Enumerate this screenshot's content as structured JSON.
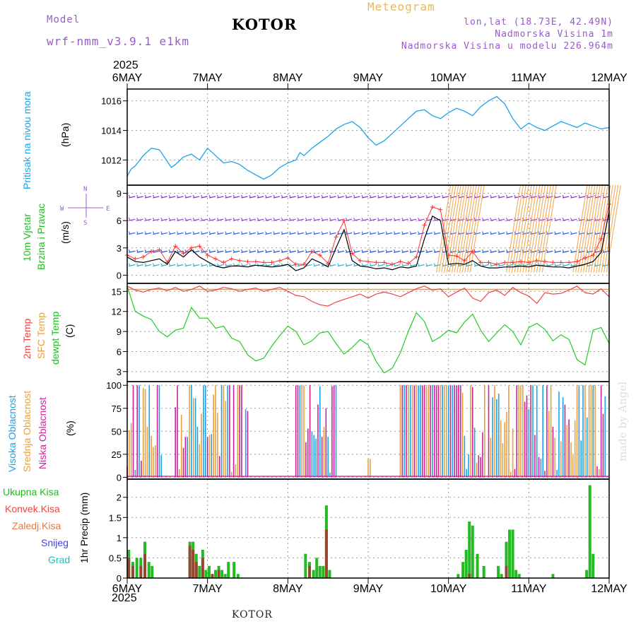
{
  "header": {
    "model_label": "Model",
    "model_name": "wrf-nmm_v3.9.1 e1km",
    "city": "KOTOR",
    "chart_title": "Meteogram",
    "lonlat": "lon,lat (18.73E, 42.49N)",
    "altitude": "Nadmorska Visina 1m",
    "model_altitude": "Nadmorska Visina u modelu 226.964m",
    "year_top": "2025",
    "year_bottom": "2025",
    "footer_city": "KOTOR",
    "watermark": "made by Angel"
  },
  "colors": {
    "pressure": "#1aa3e6",
    "wind_black": "#000000",
    "wind_red": "#ff3333",
    "temp2m": "#ee4444",
    "sfc": "#e8a040",
    "dewpt": "#22cc22",
    "high_cloud": "#1aa3e6",
    "mid_cloud": "#e8a040",
    "low_cloud": "#cc2299",
    "total_precip": "#22bb22",
    "conv_precip": "#aa3333",
    "grid": "#888888"
  },
  "panel_labels": {
    "pressure": [
      "Pritisak na nivou mora"
    ],
    "pressure_unit": "(hPa)",
    "wind": [
      "10m Vjetar",
      "Brzina i Pravac"
    ],
    "wind_unit": "(m/s)",
    "compass": {
      "n": "N",
      "s": "S",
      "e": "E",
      "w": "W"
    },
    "temp": [
      "2m Temp",
      "SFC Temp",
      "dewpt Temp"
    ],
    "temp_unit": "(C)",
    "cloud": [
      "Visoka Oblacnost",
      "Srednja Oblacnost",
      "Niska Oblacnost"
    ],
    "cloud_unit": "(%)",
    "precip_legend": [
      "Ukupna Kisa",
      "Konvek.Kisa",
      "Zaledj.Kisa",
      "Snijeg",
      "Grad"
    ],
    "precip_unit": "1hr Precip (mm)"
  },
  "chart_data": {
    "type": "line",
    "x_labels": [
      "6MAY",
      "7MAY",
      "8MAY",
      "9MAY",
      "10MAY",
      "11MAY",
      "12MAY"
    ],
    "panels": {
      "pressure": {
        "ylabel": "(hPa)",
        "yticks": [
          1012,
          1014,
          1016
        ],
        "ylim": [
          1010.3,
          1016.8
        ],
        "series": {
          "x": [
            0,
            0.05,
            0.1,
            0.2,
            0.3,
            0.4,
            0.5,
            0.55,
            0.6,
            0.7,
            0.8,
            0.9,
            1.0,
            1.1,
            1.2,
            1.3,
            1.4,
            1.5,
            1.6,
            1.7,
            1.8,
            1.9,
            2.0,
            2.1,
            2.15,
            2.2,
            2.3,
            2.4,
            2.5,
            2.6,
            2.7,
            2.8,
            2.9,
            3.0,
            3.1,
            3.2,
            3.3,
            3.4,
            3.5,
            3.6,
            3.7,
            3.8,
            3.9,
            4.0,
            4.1,
            4.2,
            4.3,
            4.4,
            4.5,
            4.6,
            4.7,
            4.8,
            4.9,
            5.0,
            5.1,
            5.2,
            5.3,
            5.4,
            5.5,
            5.6,
            5.7,
            5.8,
            5.9,
            6.0
          ],
          "values": [
            1010.9,
            1011.4,
            1011.6,
            1012.3,
            1012.8,
            1012.7,
            1011.9,
            1011.5,
            1011.7,
            1012.2,
            1012.4,
            1012.0,
            1012.8,
            1012.3,
            1011.8,
            1011.9,
            1011.7,
            1011.3,
            1011.0,
            1010.7,
            1011.0,
            1011.5,
            1011.8,
            1012.0,
            1012.5,
            1012.3,
            1012.8,
            1013.2,
            1013.6,
            1014.1,
            1014.4,
            1014.6,
            1014.2,
            1013.5,
            1013.0,
            1013.3,
            1013.8,
            1014.3,
            1014.8,
            1015.3,
            1015.4,
            1015.0,
            1014.8,
            1015.2,
            1015.5,
            1015.3,
            1015.0,
            1015.6,
            1016.0,
            1016.3,
            1015.8,
            1014.8,
            1014.1,
            1014.5,
            1014.2,
            1014.0,
            1014.3,
            1014.6,
            1014.4,
            1014.2,
            1014.5,
            1014.3,
            1014.1,
            1014.2
          ]
        }
      },
      "wind": {
        "ylabel": "(m/s)",
        "yticks": [
          0,
          3,
          6,
          9
        ],
        "ylim": [
          -0.9,
          9.9
        ],
        "speed": {
          "x": [
            0,
            0.1,
            0.2,
            0.3,
            0.4,
            0.5,
            0.6,
            0.7,
            0.8,
            0.9,
            1.0,
            1.1,
            1.2,
            1.3,
            1.4,
            1.5,
            1.6,
            1.7,
            1.8,
            1.9,
            2.0,
            2.1,
            2.2,
            2.3,
            2.4,
            2.5,
            2.6,
            2.7,
            2.8,
            2.9,
            3.0,
            3.1,
            3.2,
            3.3,
            3.4,
            3.5,
            3.6,
            3.7,
            3.8,
            3.9,
            4.0,
            4.1,
            4.2,
            4.3,
            4.4,
            4.5,
            4.6,
            4.7,
            4.8,
            4.9,
            5.0,
            5.1,
            5.2,
            5.3,
            5.4,
            5.5,
            5.6,
            5.7,
            5.8,
            5.9,
            6.0
          ],
          "values": [
            2.0,
            1.5,
            1.4,
            1.6,
            1.8,
            1.2,
            2.6,
            2.0,
            2.8,
            2.0,
            1.5,
            1.0,
            0.8,
            1.0,
            1.0,
            0.9,
            1.1,
            1.0,
            0.9,
            1.0,
            1.2,
            0.5,
            0.8,
            1.8,
            1.4,
            0.9,
            3.0,
            5.0,
            1.6,
            1.0,
            0.9,
            0.7,
            0.8,
            0.6,
            0.9,
            0.8,
            1.0,
            4.0,
            6.5,
            6.0,
            1.2,
            1.3,
            1.2,
            1.6,
            1.0,
            0.8,
            0.8,
            0.9,
            0.9,
            1.0,
            0.9,
            1.1,
            1.0,
            0.9,
            0.9,
            0.8,
            1.0,
            1.2,
            1.5,
            2.5,
            7.0
          ]
        },
        "gust": {
          "x": [
            0,
            0.1,
            0.2,
            0.3,
            0.4,
            0.5,
            0.6,
            0.7,
            0.8,
            0.9,
            1.0,
            1.1,
            1.2,
            1.3,
            1.4,
            1.5,
            1.6,
            1.7,
            1.8,
            1.9,
            2.0,
            2.1,
            2.2,
            2.3,
            2.4,
            2.5,
            2.6,
            2.7,
            2.8,
            2.9,
            3.0,
            3.1,
            3.2,
            3.3,
            3.4,
            3.5,
            3.6,
            3.7,
            3.8,
            3.9,
            4.0,
            4.1,
            4.2,
            4.3,
            4.4,
            4.5,
            4.6,
            4.7,
            4.8,
            4.9,
            5.0,
            5.1,
            5.2,
            5.3,
            5.4,
            5.5,
            5.6,
            5.7,
            5.8,
            5.9,
            6.0
          ],
          "values": [
            2.2,
            1.8,
            2.0,
            2.6,
            2.8,
            1.4,
            3.2,
            2.4,
            3.0,
            3.2,
            2.2,
            1.8,
            1.4,
            1.8,
            1.6,
            1.5,
            1.5,
            1.4,
            1.4,
            1.6,
            1.9,
            1.2,
            1.2,
            2.6,
            2.2,
            1.3,
            4.2,
            6.0,
            2.4,
            1.6,
            1.5,
            1.4,
            1.4,
            1.2,
            1.5,
            1.3,
            2.0,
            5.5,
            7.5,
            7.2,
            2.2,
            2.1,
            1.6,
            2.6,
            1.4,
            1.4,
            1.2,
            1.4,
            1.4,
            1.5,
            1.4,
            1.6,
            1.5,
            1.4,
            1.4,
            1.4,
            1.5,
            1.9,
            2.2,
            4.0,
            7.8
          ]
        },
        "barb_speeds_ms": [
          8.5,
          6.0,
          4.5,
          2.5,
          1.0
        ]
      },
      "temperature": {
        "ylabel": "(C)",
        "yticks": [
          3,
          6,
          9,
          12,
          15
        ],
        "ylim": [
          1.5,
          16.2
        ],
        "sfc_constant": 15.3,
        "t2m": {
          "x": [
            0,
            0.1,
            0.2,
            0.3,
            0.4,
            0.5,
            0.6,
            0.7,
            0.8,
            0.9,
            1.0,
            1.1,
            1.2,
            1.3,
            1.4,
            1.5,
            1.6,
            1.7,
            1.8,
            1.9,
            2.0,
            2.1,
            2.2,
            2.3,
            2.4,
            2.5,
            2.6,
            2.7,
            2.8,
            2.9,
            3.0,
            3.1,
            3.2,
            3.3,
            3.4,
            3.5,
            3.6,
            3.7,
            3.8,
            3.9,
            4.0,
            4.1,
            4.2,
            4.3,
            4.4,
            4.5,
            4.6,
            4.7,
            4.8,
            4.9,
            5.0,
            5.1,
            5.2,
            5.3,
            5.4,
            5.5,
            5.6,
            5.7,
            5.8,
            5.9,
            6.0
          ],
          "values": [
            15.8,
            15.2,
            14.9,
            15.3,
            15.5,
            15.1,
            15.6,
            15.0,
            15.3,
            15.8,
            15.0,
            15.2,
            15.6,
            15.4,
            15.0,
            15.3,
            15.5,
            15.0,
            15.3,
            15.6,
            15.0,
            14.4,
            14.2,
            13.5,
            13.0,
            12.8,
            13.4,
            13.8,
            14.2,
            14.6,
            14.0,
            14.6,
            14.9,
            14.6,
            14.2,
            14.8,
            15.4,
            15.8,
            15.2,
            15.4,
            14.2,
            14.9,
            15.5,
            14.0,
            13.5,
            14.8,
            15.2,
            14.4,
            15.6,
            14.8,
            14.3,
            13.2,
            14.8,
            14.6,
            14.7,
            15.2,
            15.8,
            14.8,
            14.6,
            15.4,
            14.2
          ]
        },
        "dewpt": {
          "x": [
            0,
            0.1,
            0.2,
            0.3,
            0.4,
            0.5,
            0.6,
            0.7,
            0.8,
            0.9,
            1.0,
            1.1,
            1.2,
            1.3,
            1.4,
            1.5,
            1.6,
            1.7,
            1.8,
            1.9,
            2.0,
            2.1,
            2.2,
            2.3,
            2.4,
            2.5,
            2.6,
            2.7,
            2.8,
            2.9,
            3.0,
            3.1,
            3.2,
            3.3,
            3.4,
            3.5,
            3.6,
            3.7,
            3.8,
            3.9,
            4.0,
            4.1,
            4.2,
            4.3,
            4.4,
            4.5,
            4.6,
            4.7,
            4.8,
            4.9,
            5.0,
            5.1,
            5.2,
            5.3,
            5.4,
            5.5,
            5.6,
            5.7,
            5.8,
            5.9,
            6.0
          ],
          "values": [
            15.8,
            12.0,
            11.3,
            10.8,
            9.0,
            8.2,
            9.2,
            9.5,
            12.6,
            11.0,
            11.0,
            9.5,
            9.8,
            8.0,
            7.5,
            5.5,
            4.6,
            5.0,
            6.8,
            8.4,
            9.8,
            9.0,
            7.0,
            7.6,
            8.8,
            9.0,
            7.2,
            5.6,
            6.6,
            7.8,
            7.0,
            4.5,
            2.8,
            3.5,
            5.8,
            9.0,
            11.8,
            10.5,
            7.5,
            8.2,
            9.2,
            8.8,
            10.4,
            11.6,
            9.2,
            7.5,
            8.8,
            10.0,
            9.0,
            7.0,
            9.6,
            10.2,
            9.3,
            7.6,
            8.5,
            7.8,
            4.8,
            4.0,
            9.2,
            9.6,
            7.2
          ]
        }
      },
      "cloud": {
        "ylabel": "(%)",
        "yticks": [
          0,
          25,
          50,
          75,
          100
        ],
        "ylim": [
          -2,
          104
        ],
        "ranges_days": [
          [
            0,
            0.45
          ],
          [
            0.6,
            1.5
          ],
          [
            2.1,
            2.6
          ],
          [
            3.0,
            3.05
          ],
          [
            3.4,
            4.15
          ],
          [
            4.15,
            6.0
          ]
        ]
      },
      "precip": {
        "ylabel": "1hr Precip (mm)",
        "yticks": [
          0,
          0.5,
          1,
          1.5,
          2
        ],
        "ylim": [
          0,
          2.45
        ],
        "total": {
          "x": [
            0.02,
            0.07,
            0.12,
            0.17,
            0.22,
            0.27,
            0.31,
            0.78,
            0.82,
            0.86,
            0.9,
            0.94,
            0.98,
            1.02,
            1.06,
            1.1,
            1.14,
            1.18,
            1.22,
            1.26,
            1.33,
            1.38,
            2.22,
            2.27,
            2.32,
            2.36,
            2.4,
            2.44,
            2.48,
            2.52,
            4.12,
            4.18,
            4.22,
            4.26,
            4.3,
            4.36,
            4.44,
            4.62,
            4.66,
            4.72,
            4.76,
            4.8,
            4.84,
            4.88,
            5.3,
            5.72,
            5.76,
            5.8
          ],
          "values": [
            0.7,
            0.4,
            0.5,
            0.5,
            0.9,
            0.4,
            0.3,
            0.9,
            0.9,
            0.6,
            0.3,
            0.7,
            0.2,
            0.3,
            0.1,
            0.2,
            0.3,
            0.2,
            0.1,
            0.4,
            0.4,
            0.1,
            0.6,
            0.4,
            0.2,
            0.5,
            0.3,
            0.3,
            1.8,
            0.2,
            0.1,
            0.4,
            0.7,
            1.4,
            1.3,
            0.6,
            0.3,
            0.3,
            0.1,
            0.9,
            1.2,
            1.2,
            0.2,
            0.1,
            0.1,
            0.2,
            2.3,
            0.6
          ]
        },
        "convective": {
          "x": [
            0.02,
            0.07,
            0.17,
            0.22,
            0.78,
            0.82,
            0.86,
            0.94,
            1.06,
            1.14,
            2.27,
            2.48,
            4.26,
            4.72
          ],
          "values": [
            0.5,
            0.3,
            0.3,
            0.6,
            0.8,
            0.7,
            0.4,
            0.5,
            0.1,
            0.2,
            0.3,
            1.2,
            0.1,
            0.3
          ]
        }
      }
    }
  }
}
